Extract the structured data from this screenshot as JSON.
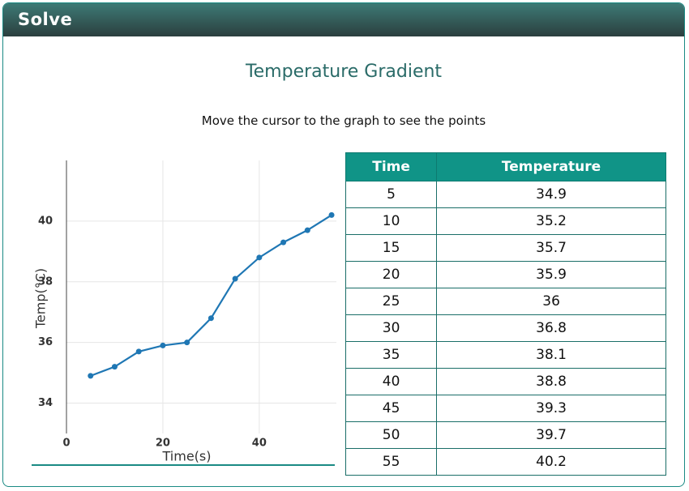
{
  "header": {
    "title": "Solve"
  },
  "title": "Temperature Gradient",
  "instruction": "Move the cursor to the graph to see the points",
  "chart_data": {
    "type": "line",
    "x_label": "Time(s)",
    "y_label": "Temp(°C)",
    "x": [
      5,
      10,
      15,
      20,
      25,
      30,
      35,
      40,
      45,
      50,
      55
    ],
    "series": [
      {
        "color": "#1f77b4",
        "values": [
          34.9,
          35.2,
          35.7,
          35.9,
          36,
          36.8,
          38.1,
          38.8,
          39.3,
          39.7,
          40.2
        ]
      }
    ],
    "xlim": [
      0,
      56
    ],
    "ylim": [
      33,
      42
    ],
    "xticks": [
      0,
      20,
      40
    ],
    "yticks": [
      34,
      36,
      38,
      40
    ],
    "grid": true
  },
  "table": {
    "columns": [
      "Time",
      "Temperature"
    ],
    "rows": [
      [
        5,
        34.9
      ],
      [
        10,
        35.2
      ],
      [
        15,
        35.7
      ],
      [
        20,
        35.9
      ],
      [
        25,
        36
      ],
      [
        30,
        36.8
      ],
      [
        35,
        38.1
      ],
      [
        40,
        38.8
      ],
      [
        45,
        39.3
      ],
      [
        50,
        39.7
      ],
      [
        55,
        40.2
      ]
    ]
  }
}
